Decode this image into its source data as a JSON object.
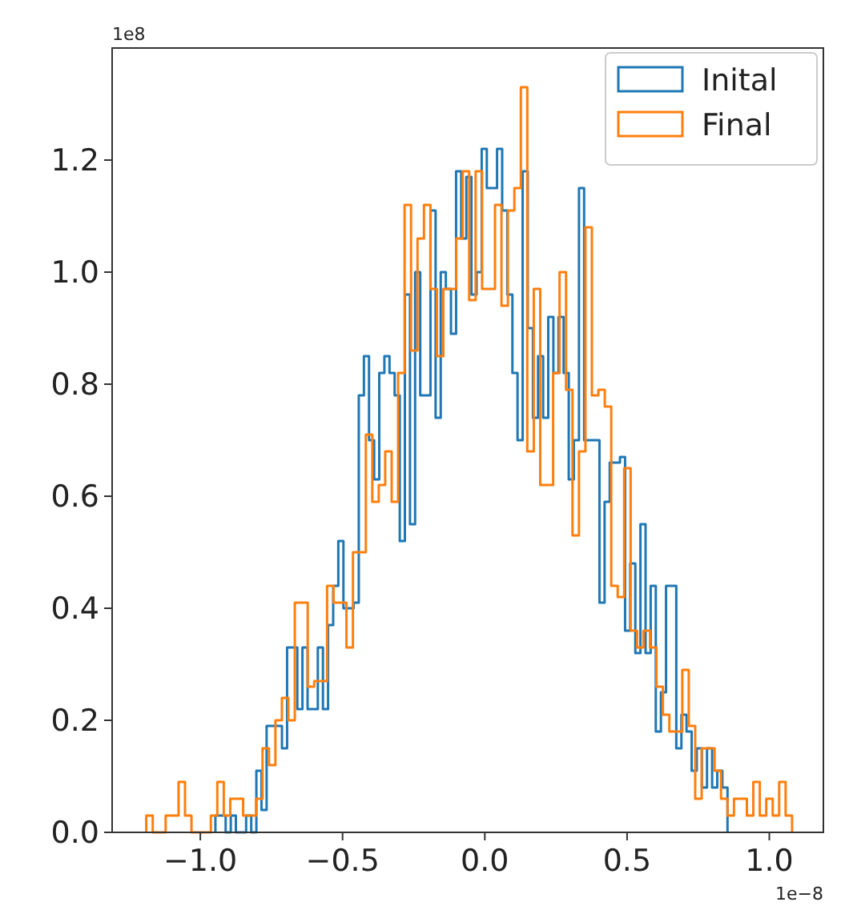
{
  "chart_data": {
    "type": "step",
    "xlim": [
      -1.31,
      1.19
    ],
    "ylim": [
      0,
      1.4
    ],
    "xticks": [
      {
        "value": -1,
        "label": "−1.0"
      },
      {
        "value": -0.5,
        "label": "−0.5"
      },
      {
        "value": 0,
        "label": "0.0"
      },
      {
        "value": 0.5,
        "label": "0.5"
      },
      {
        "value": 1,
        "label": "1.0"
      }
    ],
    "yticks": [
      {
        "value": 0,
        "label": "0.0"
      },
      {
        "value": 0.2,
        "label": "0.2"
      },
      {
        "value": 0.4,
        "label": "0.4"
      },
      {
        "value": 0.6,
        "label": "0.6"
      },
      {
        "value": 0.8,
        "label": "0.8"
      },
      {
        "value": 1.0,
        "label": "1.0"
      },
      {
        "value": 1.2,
        "label": "1.2"
      }
    ],
    "annotations": [
      "1e8",
      "1e−8"
    ],
    "legend": "top right",
    "grid": false,
    "series": [
      {
        "name": "Inital",
        "color": "#1f77b4",
        "x": [
          -0.947,
          -0.947,
          -0.929,
          -0.911,
          -0.893,
          -0.875,
          -0.857,
          -0.839,
          -0.821,
          -0.803,
          -0.785,
          -0.767,
          -0.749,
          -0.731,
          -0.713,
          -0.695,
          -0.677,
          -0.659,
          -0.641,
          -0.623,
          -0.605,
          -0.587,
          -0.569,
          -0.551,
          -0.533,
          -0.515,
          -0.497,
          -0.479,
          -0.461,
          -0.443,
          -0.425,
          -0.407,
          -0.389,
          -0.371,
          -0.353,
          -0.335,
          -0.317,
          -0.299,
          -0.281,
          -0.263,
          -0.245,
          -0.227,
          -0.209,
          -0.191,
          -0.173,
          -0.155,
          -0.137,
          -0.119,
          -0.101,
          -0.083,
          -0.065,
          -0.047,
          -0.029,
          -0.011,
          0.007,
          0.025,
          0.043,
          0.061,
          0.079,
          0.097,
          0.115,
          0.133,
          0.151,
          0.169,
          0.187,
          0.205,
          0.223,
          0.241,
          0.259,
          0.277,
          0.295,
          0.313,
          0.331,
          0.349,
          0.367,
          0.385,
          0.403,
          0.421,
          0.439,
          0.457,
          0.475,
          0.493,
          0.511,
          0.529,
          0.547,
          0.565,
          0.583,
          0.601,
          0.619,
          0.637,
          0.655,
          0.673,
          0.691,
          0.709,
          0.727,
          0.745,
          0.763,
          0.781,
          0.799,
          0.817,
          0.835,
          0.853
        ],
        "values": [
          0,
          0.03,
          0.03,
          0,
          0.03,
          0,
          0,
          0.03,
          0,
          0.11,
          0.04,
          0.19,
          0.19,
          0.19,
          0.15,
          0.33,
          0.33,
          0.22,
          0.33,
          0.22,
          0.22,
          0.33,
          0.22,
          0.37,
          0.44,
          0.52,
          0.4,
          0.4,
          0.41,
          0.78,
          0.85,
          0.7,
          0.63,
          0.82,
          0.85,
          0.82,
          0.78,
          0.52,
          0.96,
          0.55,
          1.0,
          0.78,
          0.78,
          1.11,
          0.74,
          1.0,
          0.97,
          0.89,
          1.18,
          1.06,
          1.17,
          0.96,
          1.0,
          1.22,
          1.15,
          1.15,
          1.22,
          1.11,
          0.96,
          0.82,
          0.7,
          1.18,
          0.9,
          0.74,
          0.85,
          0.74,
          0.92,
          0.82,
          0.92,
          0.82,
          0.63,
          0.7,
          1.15,
          0.7,
          0.7,
          0.7,
          0.41,
          0.59,
          0.66,
          0.66,
          0.67,
          0.36,
          0.48,
          0.32,
          0.55,
          0.32,
          0.44,
          0.18,
          0.25,
          0.44,
          0.44,
          0.15,
          0.21,
          0.18,
          0.11,
          0.15,
          0.08,
          0.15,
          0.08,
          0.11,
          0.08,
          0
        ]
      },
      {
        "name": "Final",
        "color": "#ff7f0e",
        "x": [
          -1.19,
          -1.19,
          -1.1673,
          -1.1446,
          -1.1219,
          -1.0992,
          -1.0765,
          -1.0538,
          -1.0311,
          -1.0084,
          -0.9857,
          -0.963,
          -0.9403,
          -0.9176,
          -0.8949,
          -0.8722,
          -0.8495,
          -0.8268,
          -0.8041,
          -0.7814,
          -0.7587,
          -0.736,
          -0.7133,
          -0.6906,
          -0.6679,
          -0.6452,
          -0.6225,
          -0.5998,
          -0.5771,
          -0.5544,
          -0.5317,
          -0.509,
          -0.4863,
          -0.4636,
          -0.4409,
          -0.4182,
          -0.3955,
          -0.3728,
          -0.3501,
          -0.3274,
          -0.3047,
          -0.282,
          -0.2593,
          -0.2366,
          -0.2139,
          -0.1912,
          -0.1685,
          -0.1458,
          -0.1231,
          -0.1004,
          -0.0777,
          -0.055,
          -0.0323,
          -0.0096,
          0.0131,
          0.0358,
          0.0585,
          0.0812,
          0.1039,
          0.1266,
          0.1493,
          0.172,
          0.1947,
          0.2174,
          0.2401,
          0.2628,
          0.2855,
          0.3082,
          0.3309,
          0.3536,
          0.3763,
          0.399,
          0.4217,
          0.4444,
          0.4671,
          0.4898,
          0.5125,
          0.5352,
          0.5579,
          0.5806,
          0.6033,
          0.626,
          0.6487,
          0.6714,
          0.6941,
          0.7168,
          0.7395,
          0.7622,
          0.7849,
          0.8076,
          0.8303,
          0.853,
          0.8757,
          0.8984,
          0.9211,
          0.9438,
          0.9665,
          0.9892,
          1.0119,
          1.0346,
          1.0573,
          1.08
        ],
        "values": [
          0,
          0.03,
          0,
          0,
          0.03,
          0.03,
          0.09,
          0.03,
          0,
          0,
          0,
          0.03,
          0.09,
          0.03,
          0.06,
          0.06,
          0.03,
          0.03,
          0.06,
          0.15,
          0.12,
          0.2,
          0.24,
          0.2,
          0.41,
          0.41,
          0.26,
          0.27,
          0.27,
          0.44,
          0.41,
          0.41,
          0.33,
          0.5,
          0.5,
          0.71,
          0.59,
          0.62,
          0.68,
          0.59,
          0.82,
          1.12,
          0.86,
          1.06,
          1.12,
          0.97,
          0.85,
          0.97,
          0.97,
          1.06,
          1.18,
          0.95,
          1.18,
          0.97,
          0.97,
          1.12,
          0.94,
          1.11,
          1.15,
          1.33,
          0.68,
          0.97,
          0.62,
          0.62,
          0.82,
          1.0,
          0.79,
          0.53,
          0.68,
          1.08,
          0.78,
          0.79,
          0.76,
          0.44,
          0.42,
          0.65,
          0.36,
          0.33,
          0.36,
          0.33,
          0.26,
          0.21,
          0.18,
          0.18,
          0.29,
          0.19,
          0.06,
          0.15,
          0.15,
          0.11,
          0.06,
          0.03,
          0.06,
          0.06,
          0.03,
          0.09,
          0.03,
          0.06,
          0.03,
          0.09,
          0.03,
          0
        ]
      }
    ]
  }
}
